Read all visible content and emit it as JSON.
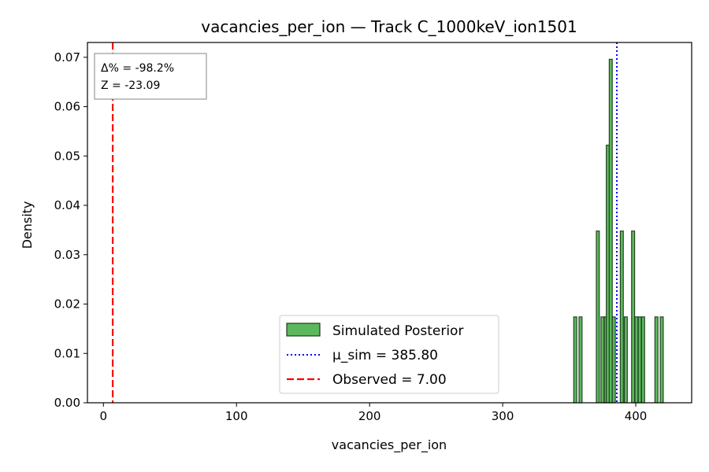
{
  "chart_data": {
    "type": "bar",
    "title": "vacancies_per_ion — Track C_1000keV_ion1501",
    "xlabel": "vacancies_per_ion",
    "ylabel": "Density",
    "xlim": [
      -12,
      442
    ],
    "ylim": [
      0,
      0.073
    ],
    "x_ticks": [
      0,
      100,
      200,
      300,
      400
    ],
    "y_ticks": [
      0.0,
      0.01,
      0.02,
      0.03,
      0.04,
      0.05,
      0.06,
      0.07
    ],
    "bin_width": 2.3,
    "bars": [
      {
        "x": 354.5,
        "y": 0.0174
      },
      {
        "x": 358.5,
        "y": 0.0174
      },
      {
        "x": 371.5,
        "y": 0.0348
      },
      {
        "x": 375.0,
        "y": 0.0174
      },
      {
        "x": 377.5,
        "y": 0.0174
      },
      {
        "x": 379.0,
        "y": 0.0522
      },
      {
        "x": 381.2,
        "y": 0.0696
      },
      {
        "x": 383.5,
        "y": 0.0174
      },
      {
        "x": 389.5,
        "y": 0.0348
      },
      {
        "x": 392.5,
        "y": 0.0174
      },
      {
        "x": 398.0,
        "y": 0.0348
      },
      {
        "x": 400.5,
        "y": 0.0174
      },
      {
        "x": 403.0,
        "y": 0.0174
      },
      {
        "x": 405.5,
        "y": 0.0174
      },
      {
        "x": 415.5,
        "y": 0.0174
      },
      {
        "x": 419.5,
        "y": 0.0174
      }
    ],
    "bar_color": "#5cb85c",
    "mean_line": {
      "value": 385.8,
      "color": "#0000ff"
    },
    "observed_line": {
      "value": 7.0,
      "color": "#ff0000"
    },
    "legend": {
      "placement": "bottom-center",
      "entries": [
        "Simulated Posterior",
        "μ_sim = 385.80",
        "Observed = 7.00"
      ]
    },
    "stats_box": {
      "line1": "Δ% = -98.2%",
      "line2": "Z = -23.09"
    },
    "grid": false
  }
}
